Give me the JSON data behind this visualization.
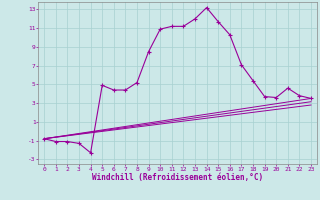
{
  "xlabel": "Windchill (Refroidissement éolien,°C)",
  "bg_color": "#cce8e8",
  "line_color": "#990099",
  "xlim": [
    -0.5,
    23.5
  ],
  "ylim": [
    -3.5,
    13.8
  ],
  "xticks": [
    0,
    1,
    2,
    3,
    4,
    5,
    6,
    7,
    8,
    9,
    10,
    11,
    12,
    13,
    14,
    15,
    16,
    17,
    18,
    19,
    20,
    21,
    22,
    23
  ],
  "yticks": [
    -3,
    -1,
    1,
    3,
    5,
    7,
    9,
    11,
    13
  ],
  "series": [
    [
      0,
      -0.8
    ],
    [
      1,
      -1.1
    ],
    [
      2,
      -1.1
    ],
    [
      3,
      -1.3
    ],
    [
      4,
      -2.3
    ],
    [
      5,
      4.9
    ],
    [
      6,
      4.4
    ],
    [
      7,
      4.4
    ],
    [
      8,
      5.2
    ],
    [
      9,
      8.5
    ],
    [
      10,
      10.9
    ],
    [
      11,
      11.2
    ],
    [
      12,
      11.2
    ],
    [
      13,
      12.0
    ],
    [
      14,
      13.2
    ],
    [
      15,
      11.7
    ],
    [
      16,
      10.3
    ],
    [
      17,
      7.1
    ],
    [
      18,
      5.4
    ],
    [
      19,
      3.7
    ],
    [
      20,
      3.6
    ],
    [
      21,
      4.6
    ],
    [
      22,
      3.8
    ],
    [
      23,
      3.5
    ]
  ],
  "linear_lines": [
    {
      "x_start": 0,
      "y_start": -0.8,
      "x_end": 23,
      "y_end": 3.5
    },
    {
      "x_start": 0,
      "y_start": -0.8,
      "x_end": 23,
      "y_end": 2.8
    },
    {
      "x_start": 0,
      "y_start": -0.8,
      "x_end": 23,
      "y_end": 3.15
    }
  ]
}
